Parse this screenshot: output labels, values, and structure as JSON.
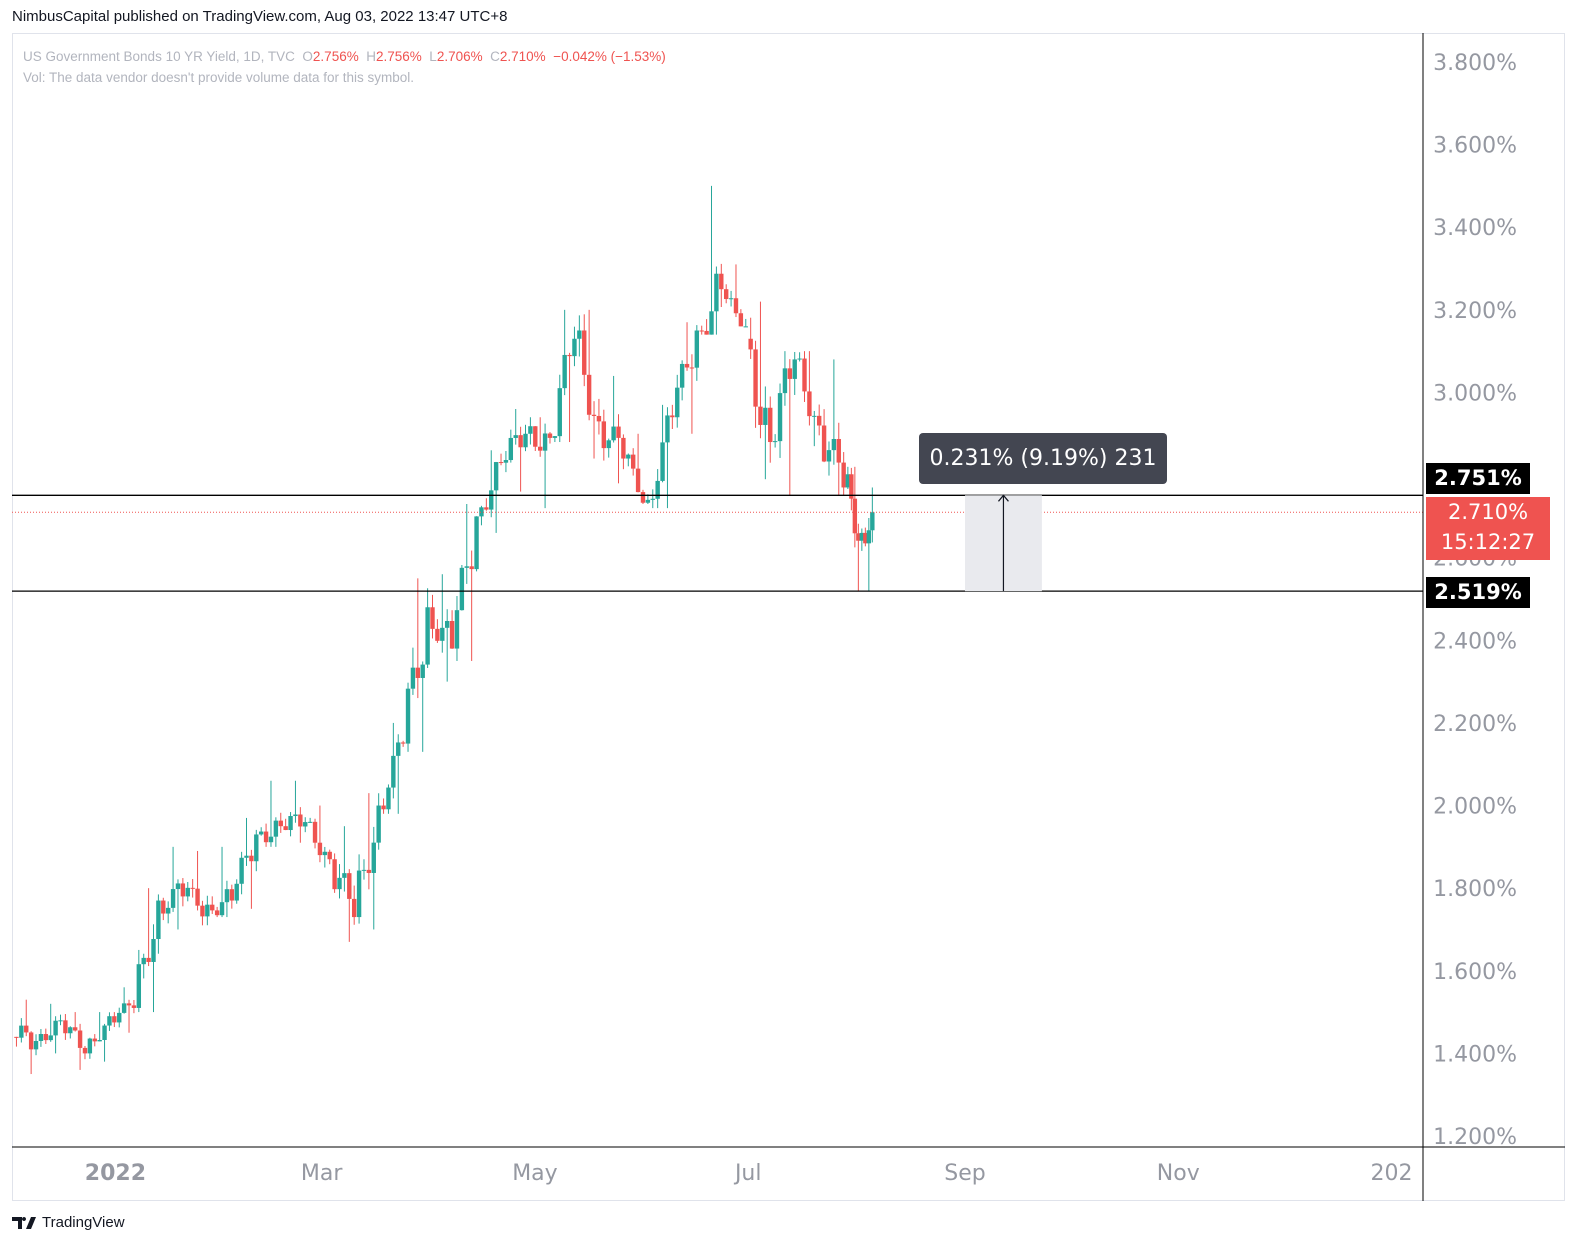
{
  "header": {
    "publisher_line": "NimbusCapital published on TradingView.com, Aug 03, 2022 13:47 UTC+8"
  },
  "legend": {
    "symbol": "US Government Bonds 10 YR Yield, 1D, TVC",
    "open_label": "O",
    "open": "2.756%",
    "high_label": "H",
    "high": "2.756%",
    "low_label": "L",
    "low": "2.706%",
    "close_label": "C",
    "close": "2.710%",
    "change": "−0.042% (−1.53%)",
    "volume_note": "Vol: The data vendor doesn't provide volume data for this symbol."
  },
  "colors": {
    "up": "#26a69a",
    "down": "#ef5350",
    "axis_text": "#9598a1",
    "line": "#000000",
    "tooltip_bg": "#434651"
  },
  "price_labels": {
    "level_upper": "2.751%",
    "last_price": "2.710%",
    "countdown": "15:12:27",
    "level_lower": "2.519%"
  },
  "measure_tooltip": "0.231% (9.19%) 231",
  "footer": {
    "brand": "TradingView"
  },
  "chart_data": {
    "type": "candlestick",
    "title": "US Government Bonds 10 YR Yield, 1D, TVC",
    "y_unit": "%",
    "ylim": [
      1.2,
      3.8
    ],
    "y_ticks": [
      "3.800%",
      "3.600%",
      "3.400%",
      "3.200%",
      "3.000%",
      "2.800%",
      "2.600%",
      "2.400%",
      "2.200%",
      "2.000%",
      "1.800%",
      "1.600%",
      "1.400%",
      "1.200%"
    ],
    "x_ticks": [
      {
        "label": "2022",
        "date": "2022-01-01"
      },
      {
        "label": "Mar",
        "date": "2022-03-01"
      },
      {
        "label": "May",
        "date": "2022-05-01"
      },
      {
        "label": "Jul",
        "date": "2022-07-01"
      },
      {
        "label": "Sep",
        "date": "2022-09-01"
      },
      {
        "label": "Nov",
        "date": "2022-11-01"
      },
      {
        "label": "202",
        "date": "2023-01-01"
      }
    ],
    "x_range": [
      "2021-12-03",
      "2023-01-10"
    ],
    "horizontal_lines": [
      2.751,
      2.519
    ],
    "last_price": 2.71,
    "measure": {
      "from": 2.519,
      "to": 2.751,
      "date_start": "2022-09-01",
      "date_end": "2022-09-23"
    },
    "weekly_ohlc": [
      {
        "date": "2021-12-03",
        "open": 1.44,
        "high": 1.53,
        "low": 1.35,
        "close": 1.43
      },
      {
        "date": "2021-12-10",
        "open": 1.43,
        "high": 1.52,
        "low": 1.4,
        "close": 1.48
      },
      {
        "date": "2021-12-17",
        "open": 1.48,
        "high": 1.5,
        "low": 1.36,
        "close": 1.4
      },
      {
        "date": "2021-12-24",
        "open": 1.4,
        "high": 1.5,
        "low": 1.38,
        "close": 1.49
      },
      {
        "date": "2021-12-31",
        "open": 1.49,
        "high": 1.56,
        "low": 1.45,
        "close": 1.51
      },
      {
        "date": "2022-01-07",
        "open": 1.51,
        "high": 1.8,
        "low": 1.5,
        "close": 1.77
      },
      {
        "date": "2022-01-14",
        "open": 1.77,
        "high": 1.9,
        "low": 1.7,
        "close": 1.78
      },
      {
        "date": "2022-01-21",
        "open": 1.78,
        "high": 1.89,
        "low": 1.71,
        "close": 1.76
      },
      {
        "date": "2022-01-28",
        "open": 1.76,
        "high": 1.9,
        "low": 1.73,
        "close": 1.77
      },
      {
        "date": "2022-02-04",
        "open": 1.77,
        "high": 1.97,
        "low": 1.75,
        "close": 1.93
      },
      {
        "date": "2022-02-11",
        "open": 1.93,
        "high": 2.06,
        "low": 1.9,
        "close": 1.95
      },
      {
        "date": "2022-02-18",
        "open": 1.95,
        "high": 2.06,
        "low": 1.91,
        "close": 1.96
      },
      {
        "date": "2022-02-25",
        "open": 1.96,
        "high": 2.0,
        "low": 1.85,
        "close": 1.87
      },
      {
        "date": "2022-03-04",
        "open": 1.87,
        "high": 1.95,
        "low": 1.67,
        "close": 1.73
      },
      {
        "date": "2022-03-11",
        "open": 1.73,
        "high": 2.03,
        "low": 1.7,
        "close": 2.0
      },
      {
        "date": "2022-03-18",
        "open": 2.0,
        "high": 2.2,
        "low": 1.98,
        "close": 2.15
      },
      {
        "date": "2022-03-25",
        "open": 2.15,
        "high": 2.55,
        "low": 2.13,
        "close": 2.48
      },
      {
        "date": "2022-04-01",
        "open": 2.48,
        "high": 2.56,
        "low": 2.3,
        "close": 2.38
      },
      {
        "date": "2022-04-08",
        "open": 2.38,
        "high": 2.73,
        "low": 2.35,
        "close": 2.7
      },
      {
        "date": "2022-04-15",
        "open": 2.7,
        "high": 2.86,
        "low": 2.66,
        "close": 2.83
      },
      {
        "date": "2022-04-22",
        "open": 2.83,
        "high": 2.96,
        "low": 2.76,
        "close": 2.9
      },
      {
        "date": "2022-04-29",
        "open": 2.9,
        "high": 2.94,
        "low": 2.72,
        "close": 2.89
      },
      {
        "date": "2022-05-06",
        "open": 2.89,
        "high": 3.2,
        "low": 2.88,
        "close": 3.13
      },
      {
        "date": "2022-05-13",
        "open": 3.13,
        "high": 3.2,
        "low": 2.84,
        "close": 2.93
      },
      {
        "date": "2022-05-20",
        "open": 2.93,
        "high": 3.04,
        "low": 2.78,
        "close": 2.84
      },
      {
        "date": "2022-05-27",
        "open": 2.84,
        "high": 2.9,
        "low": 2.73,
        "close": 2.74
      },
      {
        "date": "2022-06-03",
        "open": 2.74,
        "high": 2.97,
        "low": 2.72,
        "close": 2.94
      },
      {
        "date": "2022-06-10",
        "open": 2.94,
        "high": 3.17,
        "low": 2.9,
        "close": 3.15
      },
      {
        "date": "2022-06-17",
        "open": 3.15,
        "high": 3.5,
        "low": 3.14,
        "close": 3.25
      },
      {
        "date": "2022-06-24",
        "open": 3.25,
        "high": 3.31,
        "low": 3.16,
        "close": 3.13
      },
      {
        "date": "2022-07-01",
        "open": 3.13,
        "high": 3.22,
        "low": 2.79,
        "close": 2.88
      },
      {
        "date": "2022-07-08",
        "open": 2.88,
        "high": 3.1,
        "low": 2.75,
        "close": 3.08
      },
      {
        "date": "2022-07-15",
        "open": 3.08,
        "high": 3.1,
        "low": 2.87,
        "close": 2.92
      },
      {
        "date": "2022-07-22",
        "open": 2.92,
        "high": 3.08,
        "low": 2.75,
        "close": 2.77
      },
      {
        "date": "2022-07-29",
        "open": 2.77,
        "high": 2.82,
        "low": 2.52,
        "close": 2.66
      },
      {
        "date": "2022-08-03",
        "open": 2.66,
        "high": 2.77,
        "low": 2.52,
        "close": 2.71
      }
    ]
  }
}
